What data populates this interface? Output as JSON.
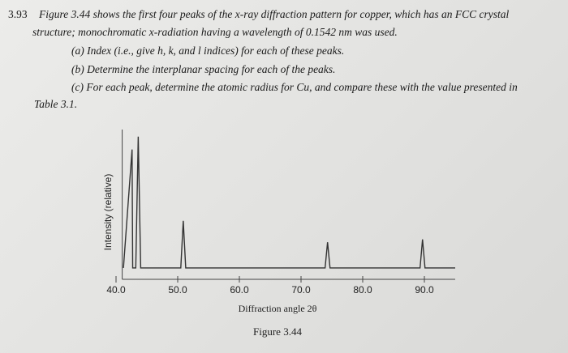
{
  "problem": {
    "number": "3.93",
    "lines": [
      "Figure 3.44 shows the first four peaks of the x-ray diffraction pattern for copper, which has an FCC crystal",
      "structure; monochromatic x-radiation having a wavelength of 0.1542 nm was used."
    ],
    "parts": [
      "(a) Index (i.e., give h, k, and l indices) for each of these peaks.",
      "(b) Determine the interplanar spacing for each of the peaks.",
      "(c) For each peak, determine the atomic radius for Cu, and compare these with the value presented in"
    ],
    "continuation": "Table 3.1."
  },
  "chart_data": {
    "type": "line",
    "caption": "Figure 3.44",
    "x_label": "Diffraction angle 2θ",
    "y_label": "Intensity (relative)",
    "color": "#333333",
    "x": [
      41.2,
      42.6,
      42.7,
      43.2,
      43.6,
      44.0,
      50.5,
      50.9,
      51.3,
      73.9,
      74.3,
      74.7,
      89.3,
      89.7,
      90.1,
      95
    ],
    "values": [
      3,
      86,
      3,
      3,
      95,
      3,
      3,
      36,
      3,
      3,
      21,
      3,
      3,
      23,
      3,
      3
    ],
    "xlim": [
      41,
      95
    ],
    "ylim": [
      -5,
      100
    ],
    "xticks": [
      {
        "value": 40,
        "label": "40.0"
      },
      {
        "value": 50,
        "label": "50.0"
      },
      {
        "value": 60,
        "label": "60.0"
      },
      {
        "value": 70,
        "label": "70.0"
      },
      {
        "value": 80,
        "label": "80.0"
      },
      {
        "value": 90,
        "label": "90.0"
      }
    ]
  }
}
